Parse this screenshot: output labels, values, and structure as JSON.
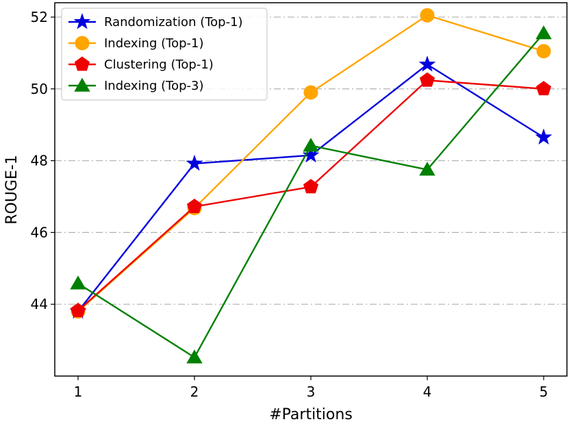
{
  "chart_data": {
    "type": "line",
    "title": "",
    "xlabel": "#Partitions",
    "ylabel": "ROUGE-1",
    "x": [
      1,
      2,
      3,
      4,
      5
    ],
    "x_ticks": [
      "1",
      "2",
      "3",
      "4",
      "5"
    ],
    "y_ticks": [
      "44",
      "46",
      "48",
      "50",
      "52"
    ],
    "y_tick_values": [
      44,
      46,
      48,
      50,
      52
    ],
    "xlim": [
      0.8,
      5.2
    ],
    "ylim": [
      42.0,
      52.4
    ],
    "grid": "horizontal dash-dot",
    "legend_position": "top-left",
    "series": [
      {
        "name": "Randomization (Top-1)",
        "color": "#0000dd",
        "marker": "star",
        "values": [
          43.8,
          47.92,
          48.15,
          50.68,
          48.65
        ]
      },
      {
        "name": "Indexing (Top-1)",
        "color": "#ffa500",
        "marker": "circle",
        "values": [
          43.8,
          46.68,
          49.9,
          52.05,
          51.05
        ]
      },
      {
        "name": "Clustering (Top-1)",
        "color": "#ee0000",
        "marker": "pentagon",
        "values": [
          43.82,
          46.72,
          47.27,
          50.24,
          50.0
        ]
      },
      {
        "name": "Indexing (Top-3)",
        "color": "#008000",
        "marker": "triangle",
        "values": [
          44.58,
          42.52,
          48.42,
          47.75,
          51.55
        ]
      }
    ]
  }
}
